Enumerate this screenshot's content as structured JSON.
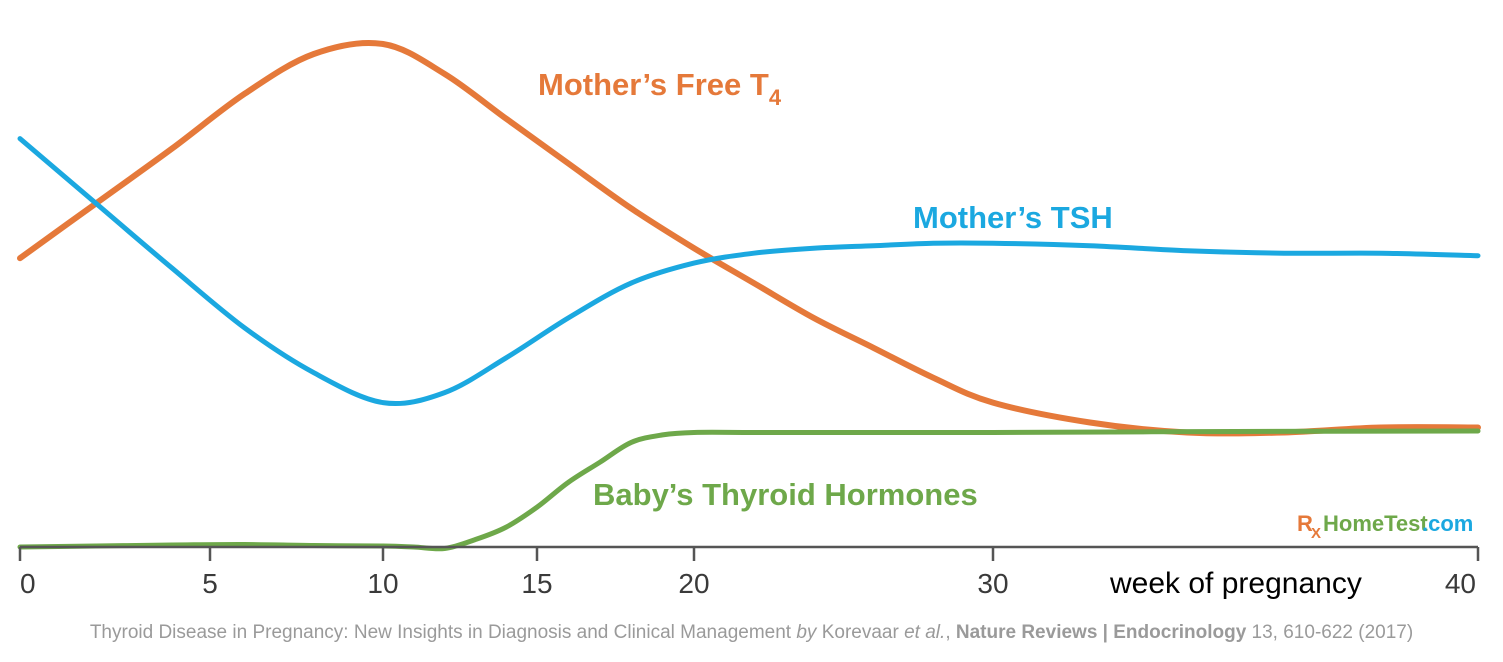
{
  "chart_data": {
    "type": "line",
    "title": "",
    "xlabel": "week of pregnancy",
    "ylabel": "",
    "xlim": [
      0,
      40
    ],
    "ylim": [
      0,
      100
    ],
    "grid": false,
    "x_ticks": [
      0,
      5,
      10,
      15,
      20,
      30,
      40
    ],
    "colors": {
      "t4": "#e5793a",
      "tsh": "#1ba8e0",
      "baby": "#6ea84a",
      "axis": "#555555"
    },
    "series": [
      {
        "key": "t4",
        "name": "Mother’s Free T",
        "subscript": "4",
        "x": [
          0,
          2,
          4,
          6,
          8,
          10,
          12,
          14,
          16,
          18,
          20,
          22,
          24,
          26,
          28,
          30,
          32,
          34,
          36,
          38,
          40
        ],
        "y": [
          58,
          69,
          80,
          91,
          99,
          101,
          95,
          86,
          77,
          68,
          60,
          53,
          46,
          40,
          34,
          29,
          25,
          23,
          23,
          24,
          24
        ]
      },
      {
        "key": "tsh",
        "name": "Mother’s TSH",
        "x": [
          0,
          2,
          4,
          6,
          8,
          10,
          12,
          14,
          16,
          18,
          20,
          22,
          24,
          26,
          28,
          30,
          32,
          34,
          36,
          38,
          40
        ],
        "y": [
          82,
          69,
          56,
          44,
          35,
          29,
          31,
          38,
          46,
          53,
          57,
          59,
          60,
          60.5,
          61,
          61,
          60.5,
          59.5,
          59,
          59,
          58.5
        ]
      },
      {
        "key": "baby",
        "name": "Baby’s Thyroid Hormones",
        "x": [
          0,
          2,
          4,
          6,
          8,
          10,
          11,
          12,
          13,
          14,
          15,
          16,
          17,
          18,
          19,
          20,
          22,
          25,
          30,
          35,
          40
        ],
        "y": [
          0,
          0.2,
          0.4,
          0.5,
          0.3,
          0.2,
          0,
          -0.3,
          1.5,
          4,
          8,
          13,
          17,
          21,
          22.5,
          23,
          23,
          23,
          23,
          23.2,
          23.3
        ]
      }
    ]
  },
  "logo": {
    "r": "R",
    "x": "X",
    "name": "HomeTest",
    "tld": ".com"
  },
  "source": {
    "title": "Thyroid Disease in Pregnancy: New Insights in Diagnosis and Clinical Management",
    "by": "by",
    "authors": "Korevaar",
    "etal": "et al.",
    "comma": ",",
    "journal": "Nature Reviews | Endocrinology",
    "citation": "13, 610-622 (2017)"
  }
}
